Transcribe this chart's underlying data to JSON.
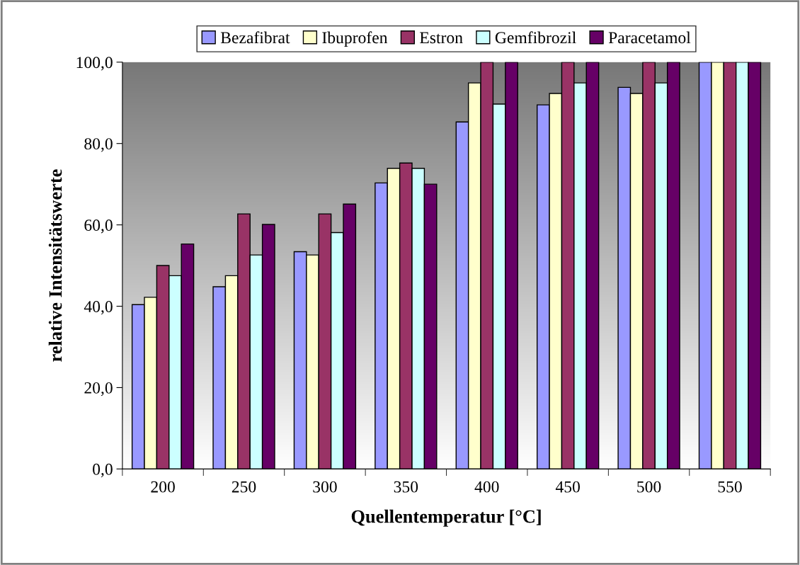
{
  "chart_data": {
    "type": "bar",
    "xlabel": "Quellentemperatur [°C]",
    "ylabel": "relative Intensitätswerte",
    "categories": [
      "200",
      "250",
      "300",
      "350",
      "400",
      "450",
      "500",
      "550"
    ],
    "series": [
      {
        "name": "Bezafibrat",
        "color": "#9999ff",
        "values": [
          40.4,
          44.8,
          53.4,
          70.3,
          85.3,
          89.5,
          93.8,
          100
        ]
      },
      {
        "name": "Ibuprofen",
        "color": "#ffffcc",
        "values": [
          42.2,
          47.5,
          52.6,
          73.9,
          94.9,
          92.3,
          92.3,
          100
        ]
      },
      {
        "name": "Estron",
        "color": "#993366",
        "values": [
          50.0,
          62.7,
          62.7,
          75.2,
          100,
          100,
          100,
          100
        ]
      },
      {
        "name": "Gemfibrozil",
        "color": "#ccffff",
        "values": [
          47.5,
          52.6,
          58.1,
          73.9,
          89.7,
          94.9,
          94.9,
          100
        ]
      },
      {
        "name": "Paracetamol",
        "color": "#660066",
        "values": [
          55.3,
          60.1,
          65.1,
          70.0,
          100,
          100,
          100,
          100
        ]
      }
    ],
    "ylim": [
      0,
      100
    ],
    "yticks": [
      {
        "value": 0,
        "label": "0,0"
      },
      {
        "value": 20,
        "label": "20,0"
      },
      {
        "value": 40,
        "label": "40,0"
      },
      {
        "value": 60,
        "label": "60,0"
      },
      {
        "value": 80,
        "label": "80,0"
      },
      {
        "value": 100,
        "label": "100,0"
      }
    ],
    "grid": false,
    "legend": "top"
  }
}
